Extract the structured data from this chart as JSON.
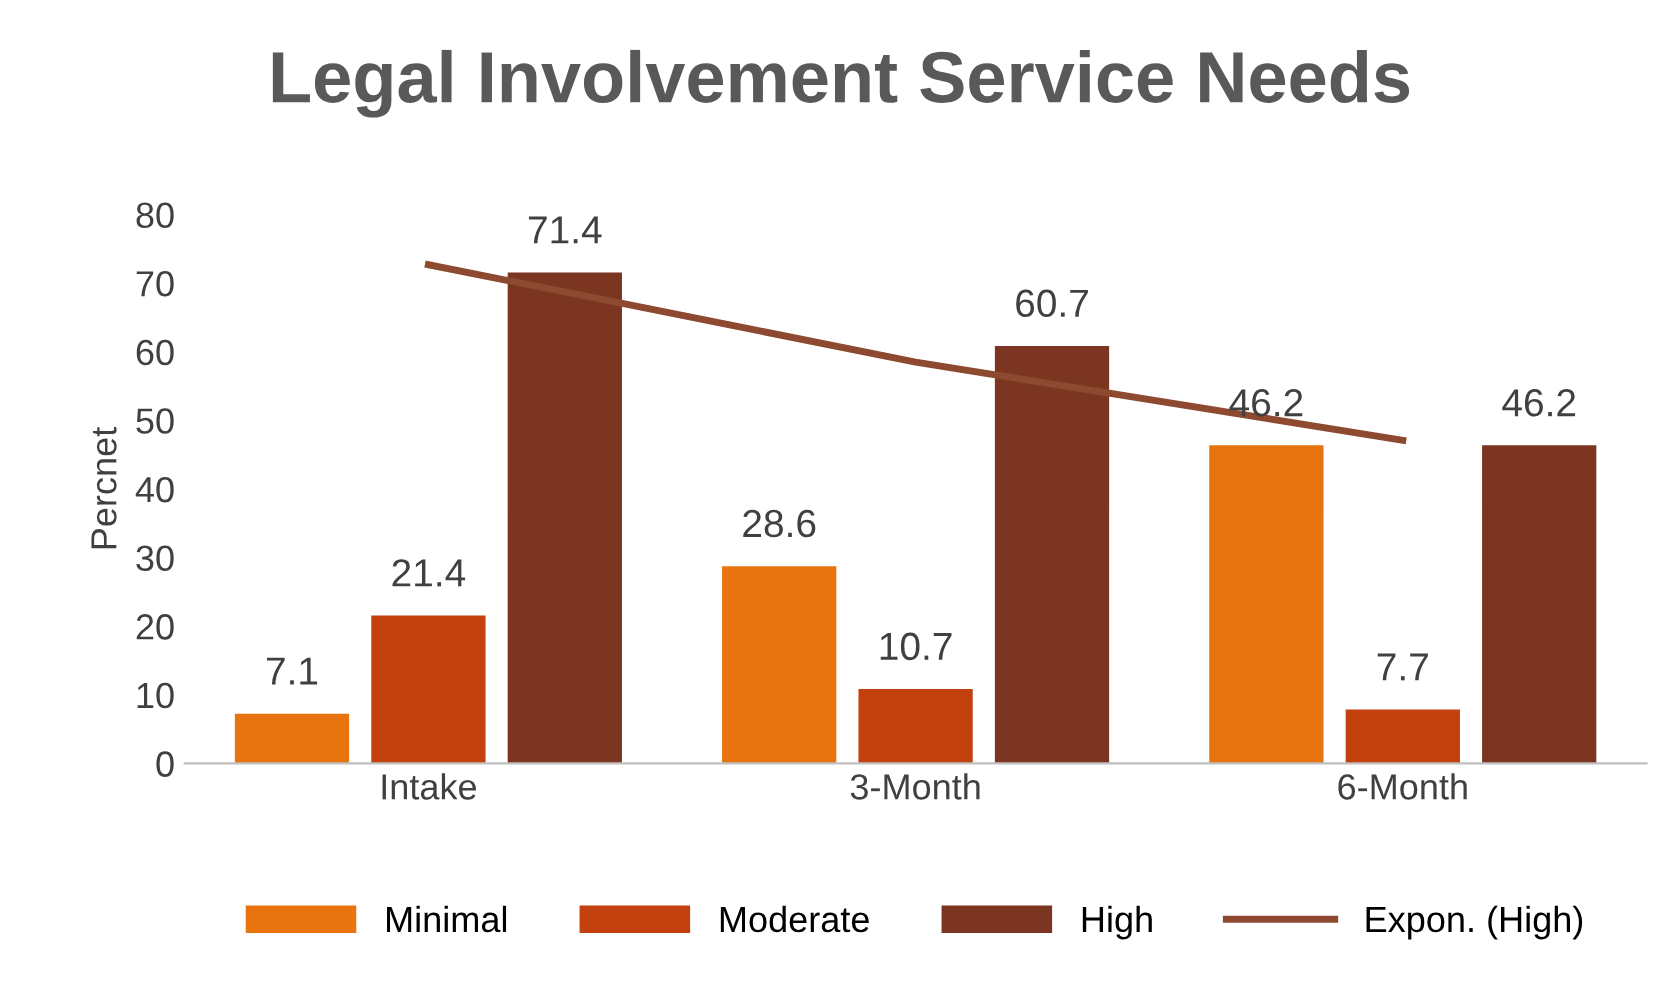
{
  "chart_data": {
    "type": "bar",
    "title": "Legal Involvement Service Needs",
    "ylabel": "Percnet",
    "categories": [
      "Intake",
      "3-Month",
      "6-Month"
    ],
    "series": [
      {
        "name": "Minimal",
        "color": "#e8740f",
        "values": [
          7.1,
          28.6,
          46.2
        ],
        "value_labels": [
          "7.1",
          "28.6",
          "46.2"
        ]
      },
      {
        "name": "Moderate",
        "color": "#c2410e",
        "values": [
          21.4,
          10.7,
          7.7
        ],
        "value_labels": [
          "21.4",
          "10.7",
          "7.7"
        ]
      },
      {
        "name": "High",
        "color": "#7b3520",
        "values": [
          71.4,
          60.7,
          46.2
        ],
        "value_labels": [
          "71.4",
          "60.7",
          "46.2"
        ]
      },
      {
        "name": "Expon. (High)",
        "type": "line",
        "color": "#8e4a30",
        "x": [
          "Intake",
          "3-Month",
          "6-Month"
        ],
        "values": [
          72.7,
          58.5,
          47.1
        ]
      }
    ],
    "ylim": [
      0,
      80
    ],
    "yticks": [
      0,
      10,
      20,
      30,
      40,
      50,
      60,
      70,
      80
    ],
    "grid": false,
    "legend": "bottom",
    "marker": "none"
  }
}
